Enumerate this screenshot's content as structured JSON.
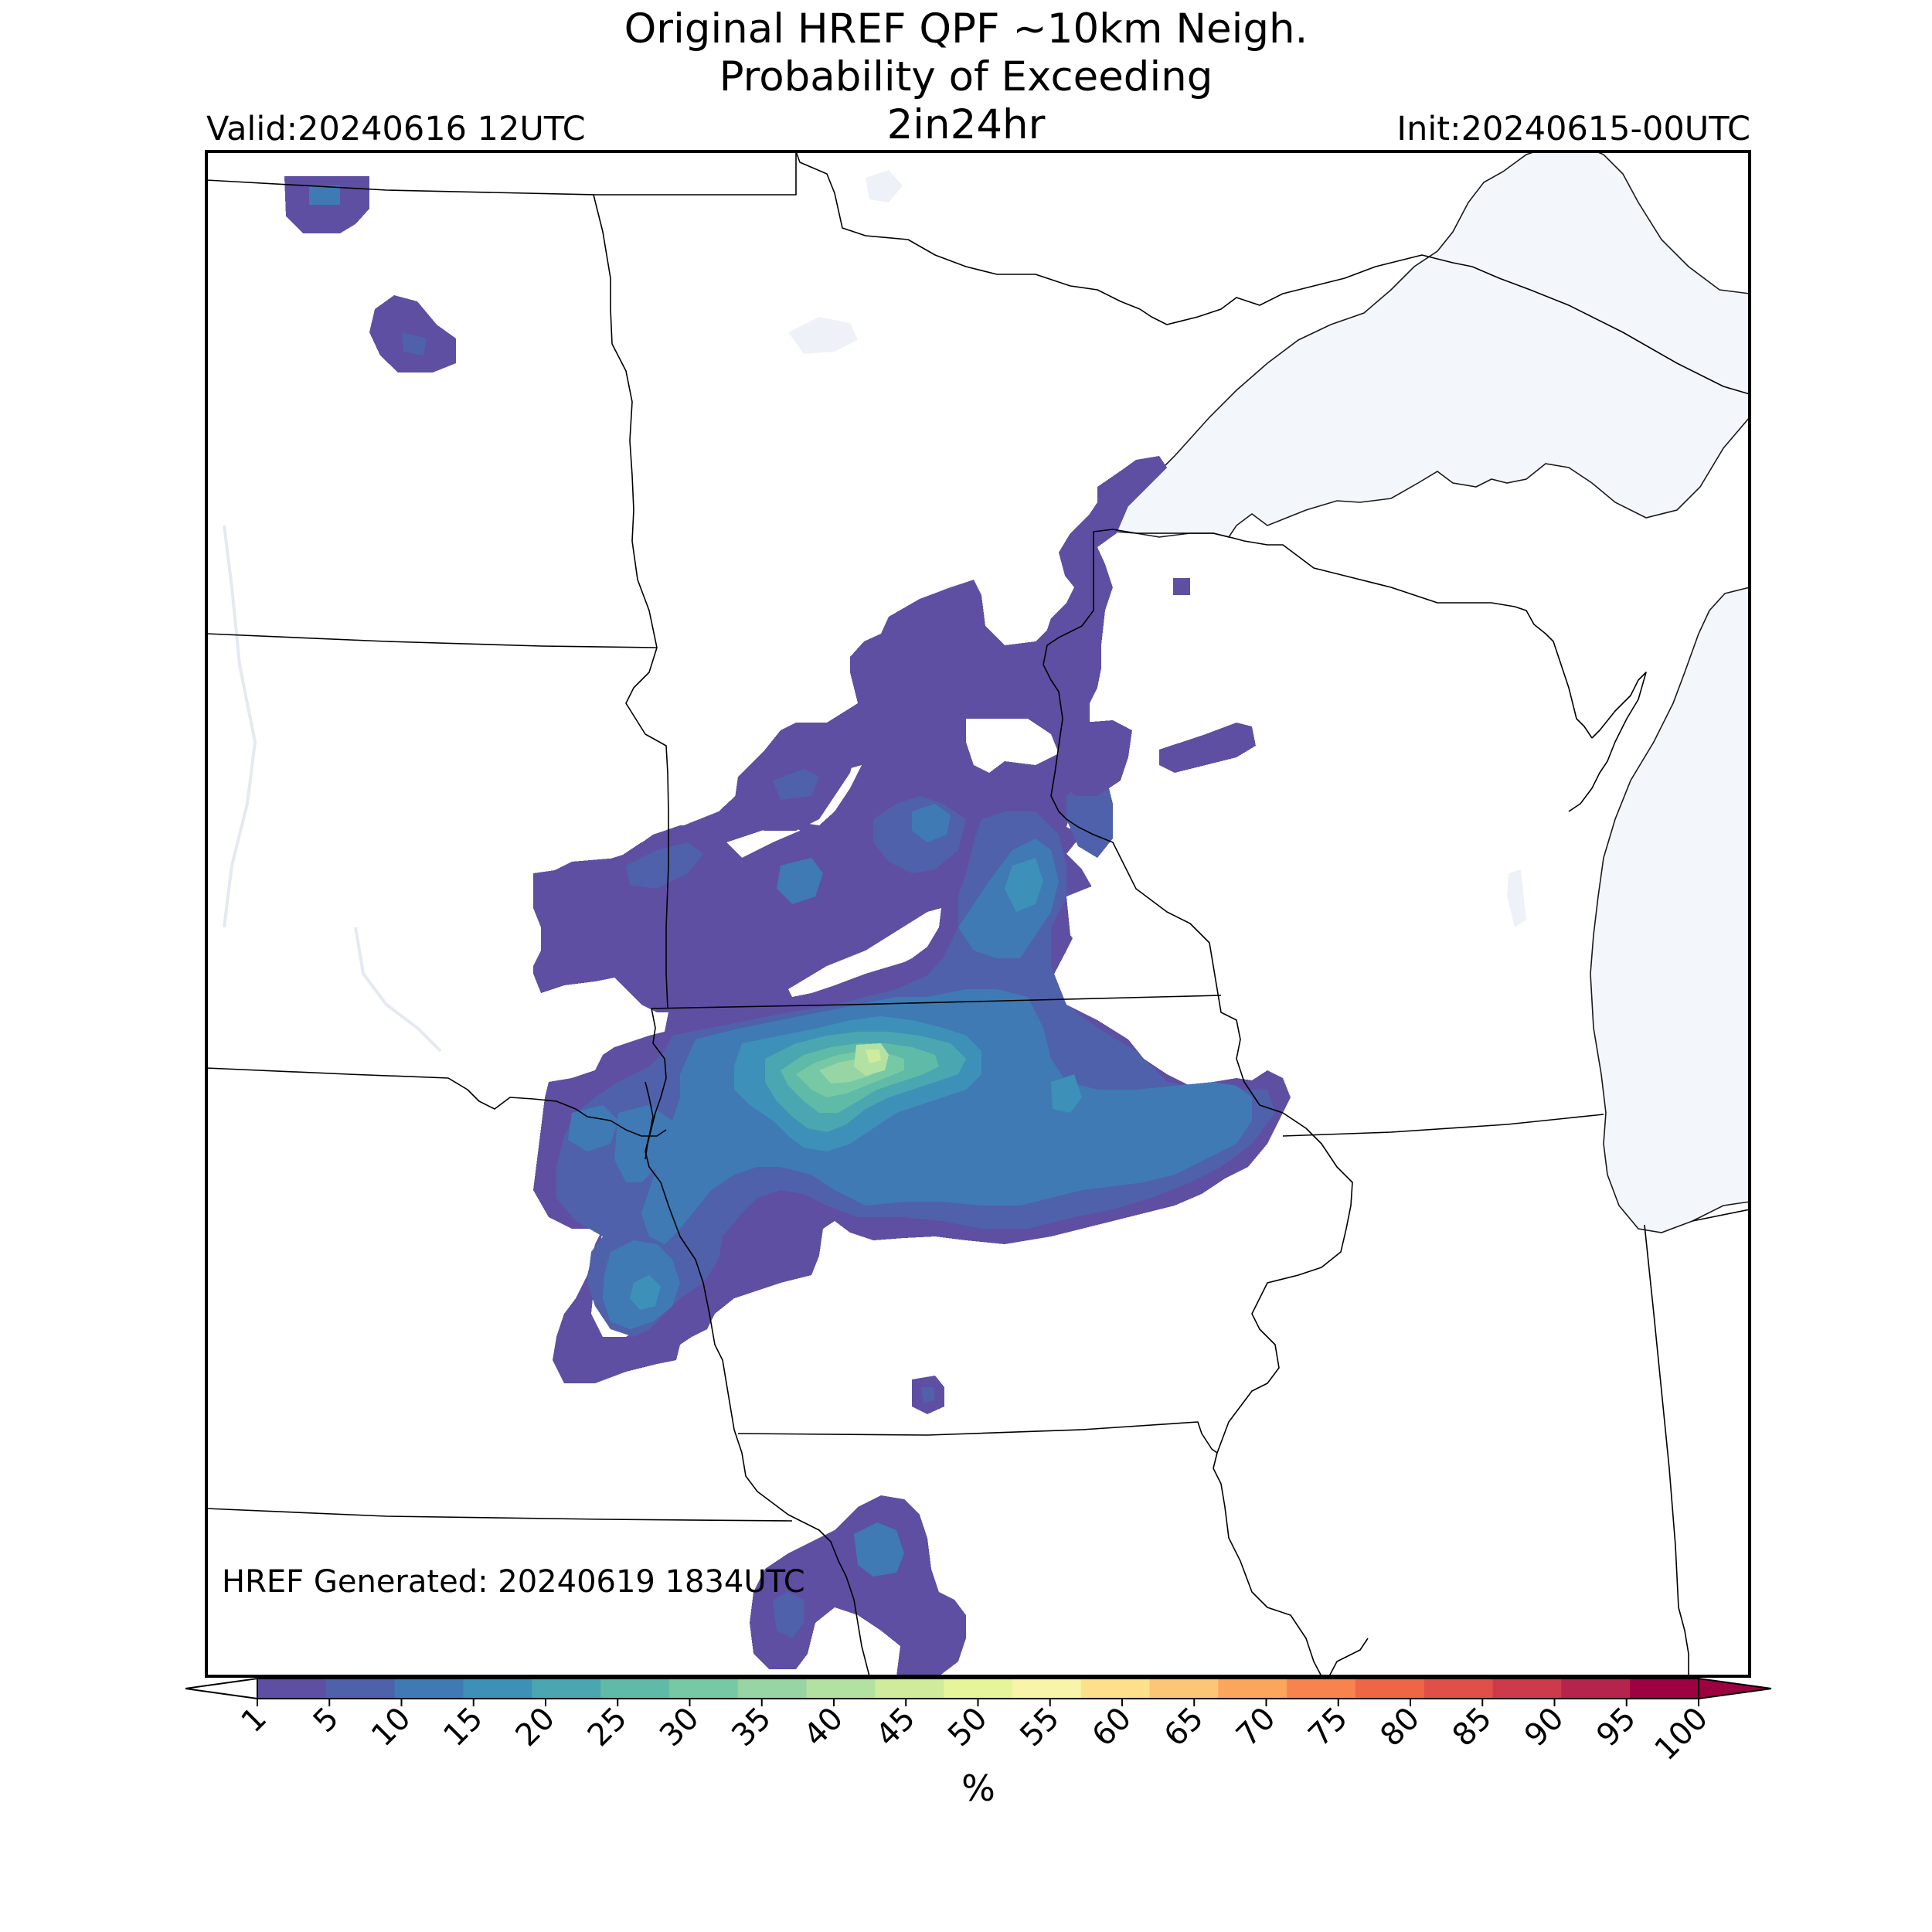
{
  "header": {
    "title_line1": "Original HREF QPF ~10km Neigh.",
    "title_line2": "Probability of Exceeding",
    "title_line3": "2in24hr",
    "valid": "Valid:20240616 12UTC",
    "init": "Init:20240615-00UTC"
  },
  "map": {
    "footer_text": "HREF Generated: 20240619 1834UTC",
    "land_color": "#ffffff",
    "water_color": "#f3f6fb",
    "border_color": "#000000"
  },
  "colorbar": {
    "unit_label": "%",
    "levels": [
      "1",
      "5",
      "10",
      "15",
      "20",
      "25",
      "30",
      "35",
      "40",
      "45",
      "50",
      "55",
      "60",
      "65",
      "70",
      "75",
      "80",
      "85",
      "90",
      "95",
      "100"
    ],
    "colors": [
      "#5e4fa2",
      "#4f61aa",
      "#3f7ab4",
      "#3d90b8",
      "#4aa6b0",
      "#5fbaa7",
      "#77c9a5",
      "#97d5a4",
      "#b3e1a1",
      "#cfec9c",
      "#e6f599",
      "#f8f4aa",
      "#fee08b",
      "#fdc677",
      "#fca55d",
      "#f7834e",
      "#ef6646",
      "#e14f49",
      "#cc3a4c",
      "#b4244c",
      "#9e0142"
    ],
    "under_color": "#ffffff",
    "over_color": "#9e0142"
  }
}
